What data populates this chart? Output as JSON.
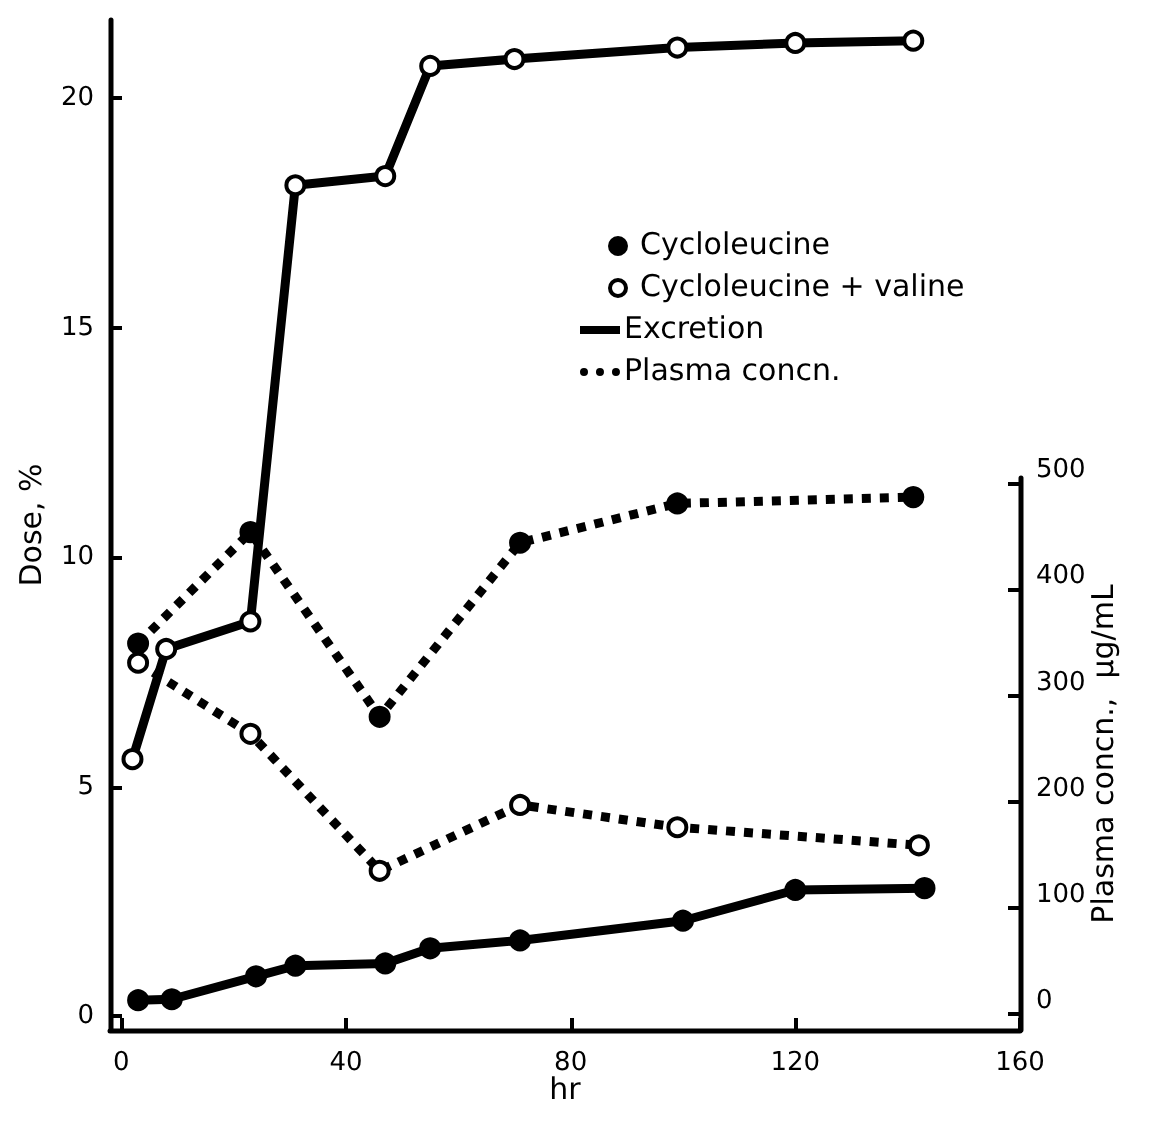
{
  "chart_data": {
    "type": "line",
    "xlabel": "hr",
    "ylabel": "Dose, %",
    "y2label": "Plasma concn.,  μg/mL",
    "xlim": [
      -2,
      160
    ],
    "xticks": [
      0,
      40,
      80,
      120,
      160
    ],
    "ylim": [
      -0.3,
      21.7
    ],
    "yticks": [
      0,
      5,
      10,
      15,
      20
    ],
    "y2lim": [
      -15,
      505
    ],
    "y2ticks": [
      0,
      100,
      200,
      300,
      400,
      500
    ],
    "grid": false,
    "marker": "circle",
    "annotations": [
      "Cycloleucine",
      "Cycloleucine + valine",
      "Excretion",
      "Plasma concn."
    ],
    "series": [
      {
        "color": "#000000",
        "line_style": "solid",
        "x": [
          3,
          9,
          24,
          31,
          47,
          55,
          71,
          100,
          120,
          143
        ],
        "values": [
          0.35,
          0.37,
          0.87,
          1.1,
          1.15,
          1.48,
          1.65,
          2.08,
          2.75,
          2.79
        ]
      },
      {
        "color": "#ffffff",
        "line_style": "solid",
        "x": [
          2,
          8,
          23,
          31,
          47,
          55,
          70,
          99,
          120,
          141
        ],
        "values": [
          5.6,
          8.0,
          8.6,
          18.1,
          18.3,
          20.7,
          20.85,
          21.1,
          21.2,
          21.25
        ]
      },
      {
        "color": "#000000",
        "line_style": "dotted",
        "axis": "y2",
        "x": [
          3,
          23,
          46,
          71,
          99,
          141
        ],
        "values": [
          349,
          454,
          280,
          444,
          481,
          487
        ]
      },
      {
        "color": "#ffffff",
        "line_style": "dotted",
        "axis": "y2",
        "x": [
          3,
          23,
          46,
          71,
          99,
          142
        ],
        "values": [
          331,
          264,
          135,
          197,
          176,
          159
        ]
      }
    ]
  }
}
